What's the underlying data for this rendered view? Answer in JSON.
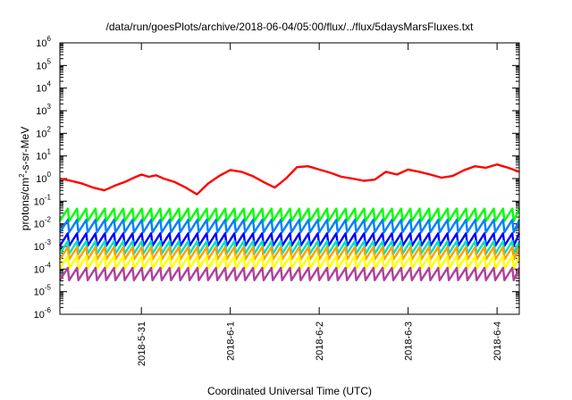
{
  "chart_data": {
    "type": "line",
    "title": "/data/run/goesPlots/archive/2018-06-04/05:00/flux/../flux/5daysMarsFluxes.txt",
    "xlabel": "Coordinated Universal Time (UTC)",
    "ylabel": {
      "prefix": "protons/cm",
      "exponent": "2",
      "suffix": "-s-sr-MeV"
    },
    "y_scale": "log",
    "ylim": [
      1e-06,
      1000000.0
    ],
    "xlim": [
      "2018-05-30T02:00",
      "2018-06-04T06:00"
    ],
    "grid": false,
    "legend": "none",
    "x_ticks": [
      {
        "t": "2018-05-31T00:00",
        "label": "2018-5-31"
      },
      {
        "t": "2018-06-01T00:00",
        "label": "2018-6-1"
      },
      {
        "t": "2018-06-02T00:00",
        "label": "2018-6-2"
      },
      {
        "t": "2018-06-03T00:00",
        "label": "2018-6-3"
      },
      {
        "t": "2018-06-04T00:00",
        "label": "2018-6-4"
      }
    ],
    "y_ticks": [
      {
        "v": 1e-06,
        "base": "10",
        "exp": "-6"
      },
      {
        "v": 1e-05,
        "base": "10",
        "exp": "-5"
      },
      {
        "v": 0.0001,
        "base": "10",
        "exp": "-4"
      },
      {
        "v": 0.001,
        "base": "10",
        "exp": "-3"
      },
      {
        "v": 0.01,
        "base": "10",
        "exp": "-2"
      },
      {
        "v": 0.1,
        "base": "10",
        "exp": "-1"
      },
      {
        "v": 1,
        "base": "10",
        "exp": "0"
      },
      {
        "v": 10,
        "base": "10",
        "exp": "1"
      },
      {
        "v": 100,
        "base": "10",
        "exp": "2"
      },
      {
        "v": 1000,
        "base": "10",
        "exp": "3"
      },
      {
        "v": 10000,
        "base": "10",
        "exp": "4"
      },
      {
        "v": 100000,
        "base": "10",
        "exp": "5"
      },
      {
        "v": 1000000,
        "base": "10",
        "exp": "6"
      }
    ],
    "series": [
      {
        "color": "#ff0000",
        "x": [
          "2018-05-30T02:00",
          "2018-05-30T05:00",
          "2018-05-30T08:00",
          "2018-05-30T11:00",
          "2018-05-30T14:00",
          "2018-05-30T17:00",
          "2018-05-30T19:30",
          "2018-05-30T22:00",
          "2018-05-31T00:00",
          "2018-05-31T02:00",
          "2018-05-31T04:00",
          "2018-05-31T06:00",
          "2018-05-31T09:00",
          "2018-05-31T12:00",
          "2018-05-31T15:00",
          "2018-05-31T18:00",
          "2018-05-31T21:00",
          "2018-06-01T00:00",
          "2018-06-01T03:00",
          "2018-06-01T06:00",
          "2018-06-01T09:00",
          "2018-06-01T12:00",
          "2018-06-01T15:00",
          "2018-06-01T18:00",
          "2018-06-01T21:00",
          "2018-06-02T00:00",
          "2018-06-02T03:00",
          "2018-06-02T06:00",
          "2018-06-02T09:00",
          "2018-06-02T12:00",
          "2018-06-02T15:00",
          "2018-06-02T18:00",
          "2018-06-02T21:00",
          "2018-06-03T00:00",
          "2018-06-03T03:00",
          "2018-06-03T06:00",
          "2018-06-03T09:00",
          "2018-06-03T12:00",
          "2018-06-03T15:00",
          "2018-06-03T18:00",
          "2018-06-03T21:00",
          "2018-06-04T00:00",
          "2018-06-04T03:00",
          "2018-06-04T06:00"
        ],
        "values": [
          1.0,
          0.8,
          0.6,
          0.4,
          0.3,
          0.5,
          0.7,
          1.1,
          1.5,
          1.2,
          1.4,
          1.0,
          0.7,
          0.4,
          0.2,
          0.6,
          1.3,
          2.4,
          2.0,
          1.3,
          0.7,
          0.4,
          1.0,
          3.2,
          3.5,
          2.5,
          1.8,
          1.2,
          1.0,
          0.8,
          0.9,
          2.0,
          1.5,
          2.5,
          2.0,
          1.5,
          1.1,
          1.3,
          2.3,
          3.5,
          3.0,
          4.2,
          3.0,
          2.0
        ]
      },
      {
        "color": "#00ff00",
        "x": [
          "2018-05-30T02:00",
          "2018-06-04T06:00"
        ],
        "values": [
          0.025,
          0.025
        ]
      },
      {
        "color": "#0080ff",
        "x": [
          "2018-05-30T02:00",
          "2018-06-04T06:00"
        ],
        "values": [
          0.008,
          0.008
        ]
      },
      {
        "color": "#0000ff",
        "x": [
          "2018-05-30T02:00",
          "2018-06-04T06:00"
        ],
        "values": [
          0.002,
          0.002
        ]
      },
      {
        "color": "#00e0c0",
        "x": [
          "2018-05-30T02:00",
          "2018-06-04T06:00"
        ],
        "values": [
          0.0009,
          0.0009
        ]
      },
      {
        "color": "#ffa000",
        "x": [
          "2018-05-30T02:00",
          "2018-06-04T06:00"
        ],
        "values": [
          0.0005,
          0.0005
        ]
      },
      {
        "color": "#ffff00",
        "x": [
          "2018-05-30T02:00",
          "2018-06-04T06:00"
        ],
        "values": [
          0.0002,
          0.0002
        ]
      },
      {
        "color": "#b040a0",
        "x": [
          "2018-05-30T02:00",
          "2018-06-04T06:00"
        ],
        "values": [
          6e-05,
          6e-05
        ]
      }
    ],
    "periodic_series_pattern": {
      "period_hours": 2.5,
      "amplitude_decades": 0.55
    }
  }
}
